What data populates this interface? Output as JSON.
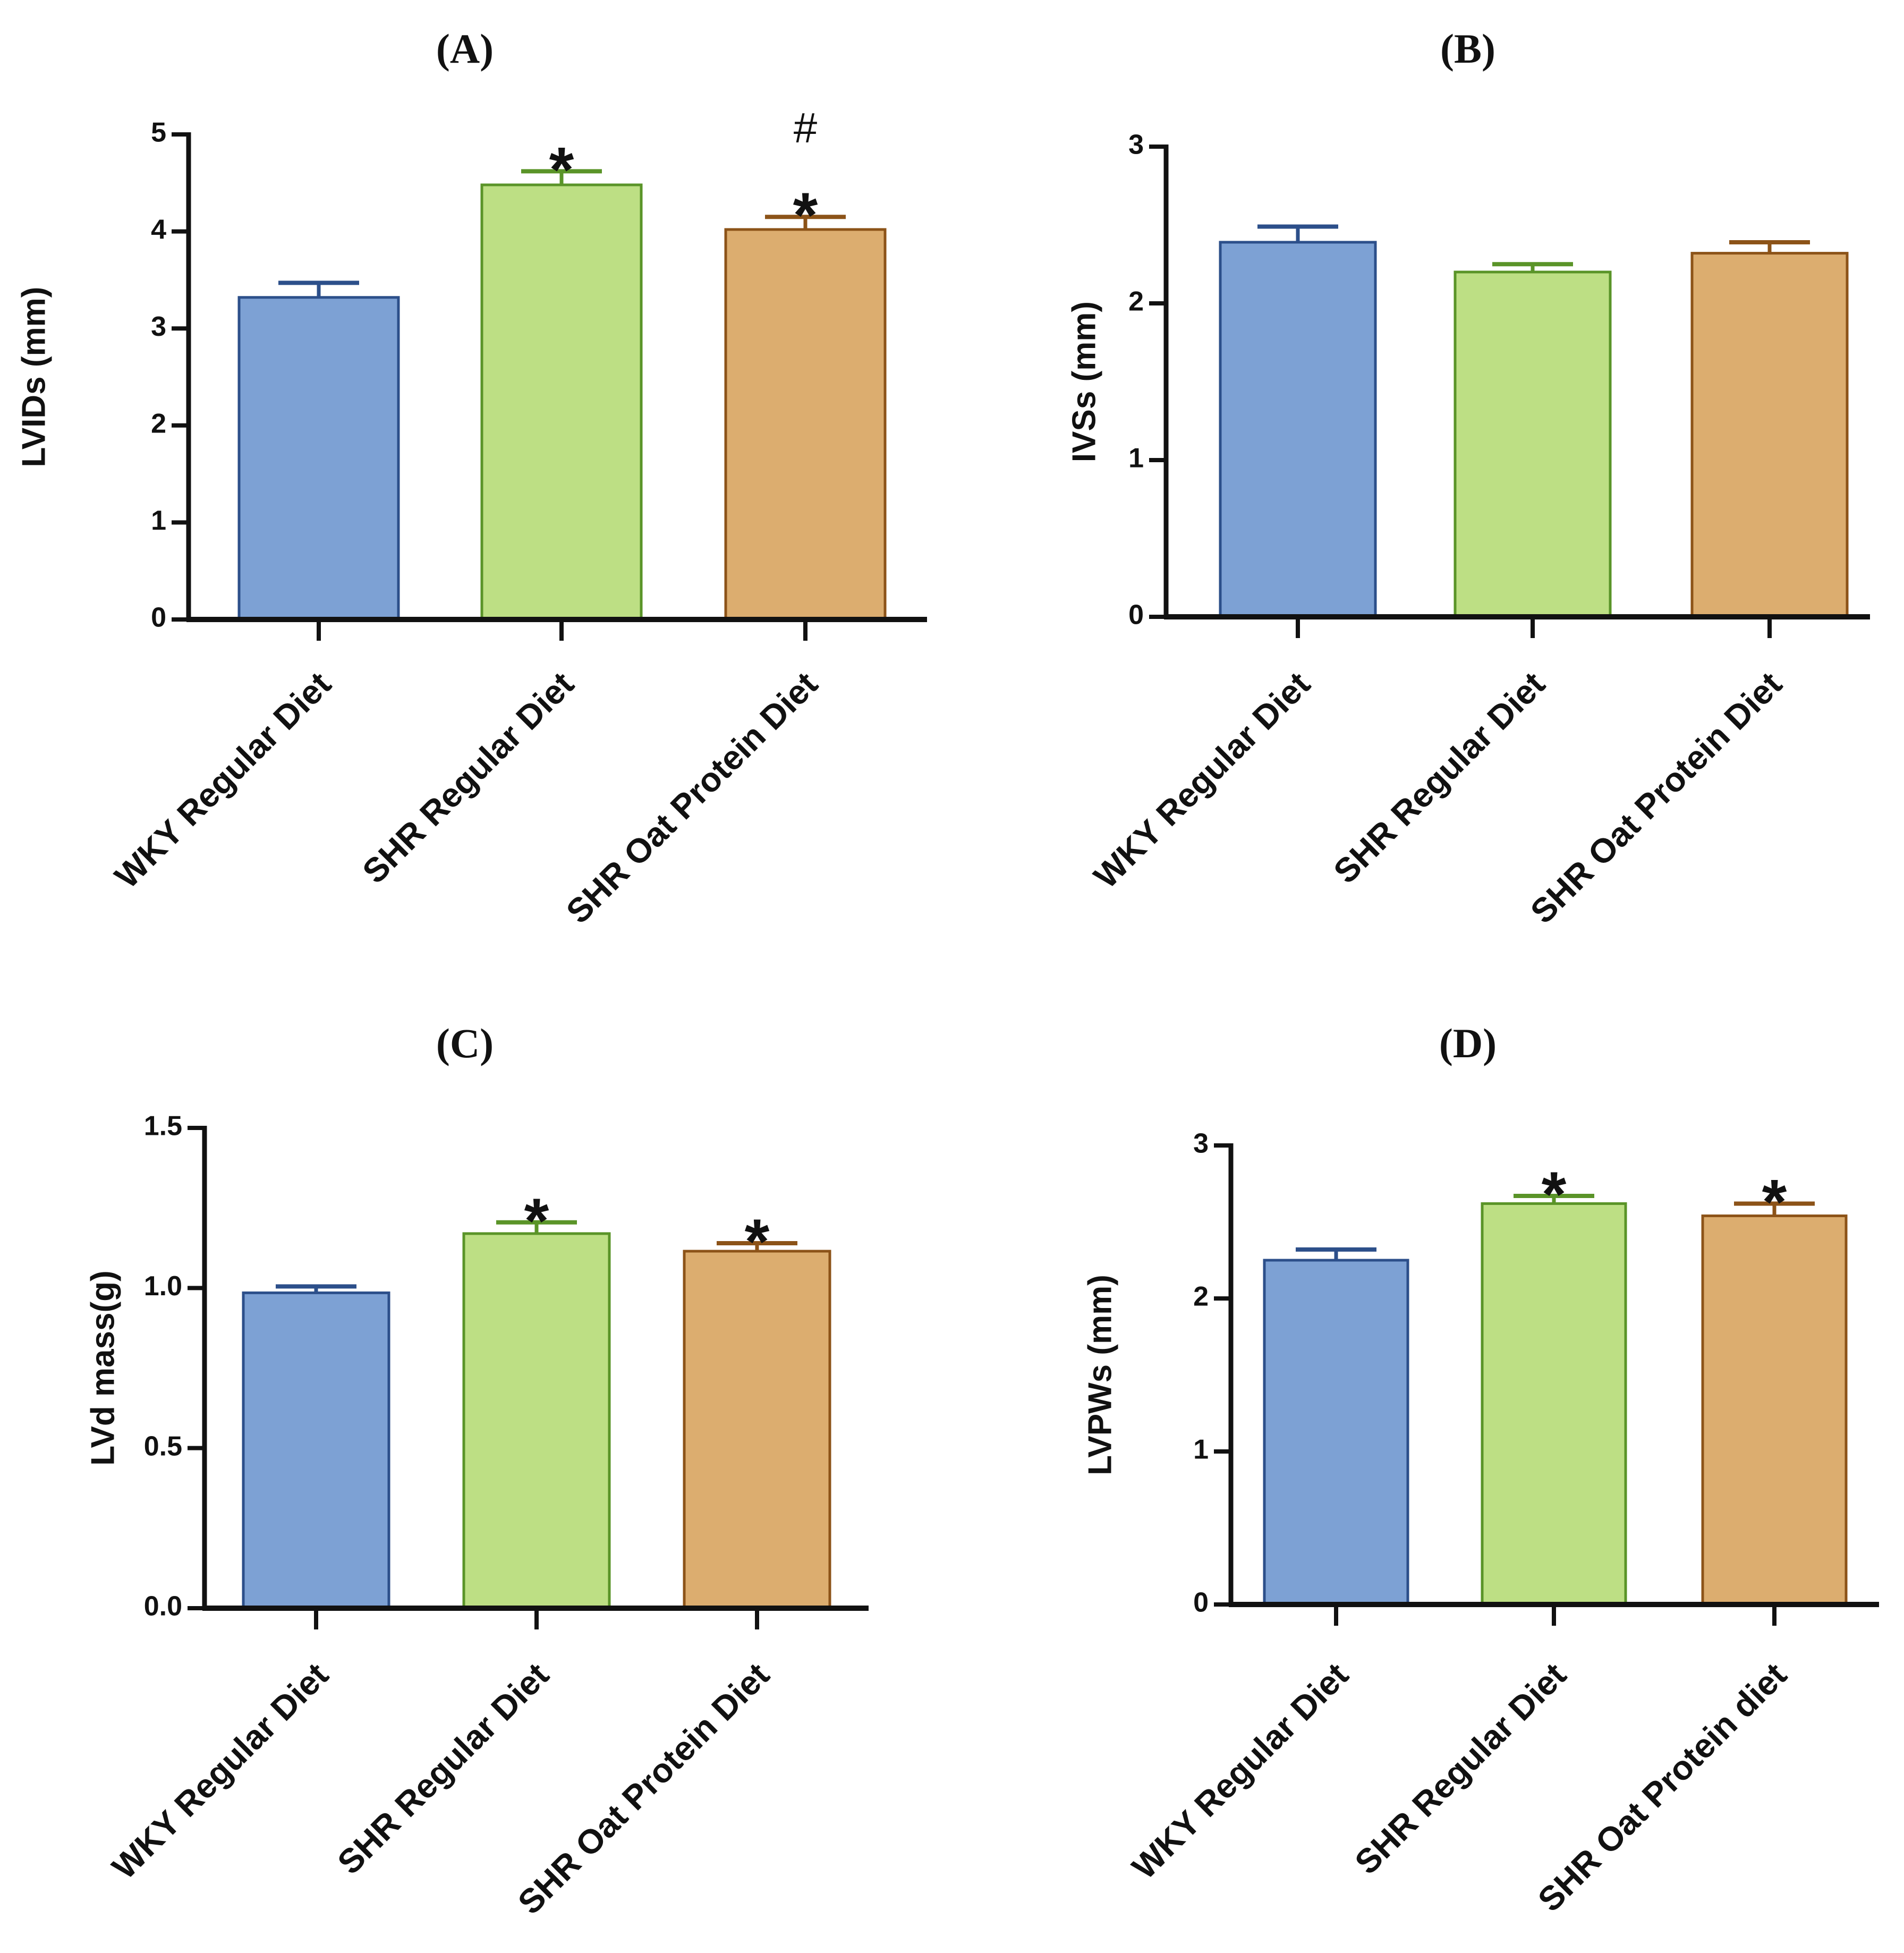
{
  "chart_data": [
    {
      "type": "bar",
      "title": "(A)",
      "ylabel": "LVIDs (mm)",
      "xlabel": "",
      "ylim": [
        0,
        5
      ],
      "yticks": [
        "0",
        "1",
        "2",
        "3",
        "4",
        "5"
      ],
      "categories": [
        "WKY Regular Diet",
        "SHR Regular Diet",
        "SHR Oat Protein Diet"
      ],
      "values": [
        3.32,
        4.48,
        4.02
      ],
      "errors": [
        0.15,
        0.14,
        0.13
      ],
      "annotations": [
        [],
        [
          "*"
        ],
        [
          "*",
          "#"
        ]
      ],
      "colors": {
        "fill": [
          "#7da1d4",
          "#bddf84",
          "#dcad6f"
        ],
        "stroke": [
          "#2c4f8a",
          "#5a9428",
          "#8c5318"
        ]
      }
    },
    {
      "type": "bar",
      "title": "(B)",
      "ylabel": "IVSs (mm)",
      "xlabel": "",
      "ylim": [
        0,
        3
      ],
      "yticks": [
        "0",
        "1",
        "2",
        "3"
      ],
      "categories": [
        "WKY Regular Diet",
        "SHR Regular Diet",
        "SHR Oat Protein Diet"
      ],
      "values": [
        2.39,
        2.2,
        2.32
      ],
      "errors": [
        0.1,
        0.05,
        0.07
      ],
      "annotations": [
        [],
        [],
        []
      ],
      "colors": {
        "fill": [
          "#7da1d4",
          "#bddf84",
          "#dcad6f"
        ],
        "stroke": [
          "#2c4f8a",
          "#5a9428",
          "#8c5318"
        ]
      }
    },
    {
      "type": "bar",
      "title": "(C)",
      "ylabel": "LVd mass(g)",
      "xlabel": "",
      "ylim": [
        0,
        1.5
      ],
      "yticks": [
        "0.0",
        "0.5",
        "1.0",
        "1.5"
      ],
      "categories": [
        "WKY Regular Diet",
        "SHR Regular Diet",
        "SHR Oat Protein Diet"
      ],
      "values": [
        0.985,
        1.17,
        1.115
      ],
      "errors": [
        0.02,
        0.035,
        0.025
      ],
      "annotations": [
        [],
        [
          "*"
        ],
        [
          "*"
        ]
      ],
      "colors": {
        "fill": [
          "#7da1d4",
          "#bddf84",
          "#dcad6f"
        ],
        "stroke": [
          "#2c4f8a",
          "#5a9428",
          "#8c5318"
        ]
      }
    },
    {
      "type": "bar",
      "title": "(D)",
      "ylabel": "LVPWs (mm)",
      "xlabel": "",
      "ylim": [
        0,
        3
      ],
      "yticks": [
        "0",
        "1",
        "2",
        "3"
      ],
      "categories": [
        "WKY Regular Diet",
        "SHR Regular Diet",
        "SHR Oat Protein diet"
      ],
      "values": [
        2.25,
        2.62,
        2.54
      ],
      "errors": [
        0.07,
        0.05,
        0.08
      ],
      "annotations": [
        [],
        [
          "*"
        ],
        [
          "*"
        ]
      ],
      "colors": {
        "fill": [
          "#7da1d4",
          "#bddf84",
          "#dcad6f"
        ],
        "stroke": [
          "#2c4f8a",
          "#5a9428",
          "#8c5318"
        ]
      }
    }
  ]
}
